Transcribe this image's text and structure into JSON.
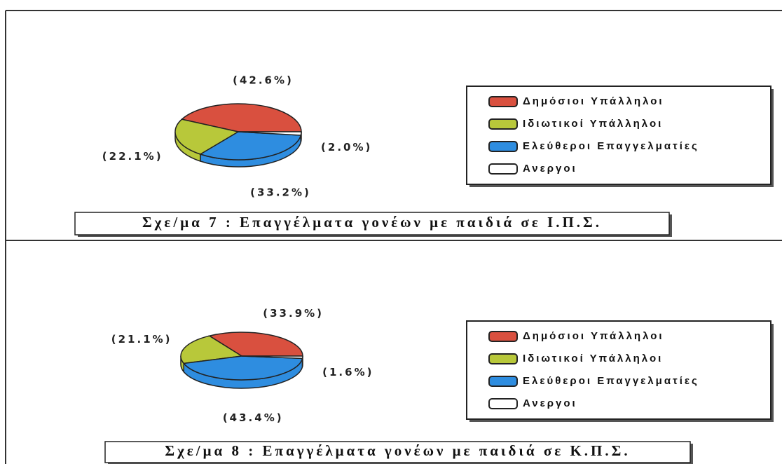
{
  "chart_data": [
    {
      "type": "pie",
      "title": "Σχε/μα 7 : Επαγγέλματα γονέων με παιδιά σε Ι.Π.Σ.",
      "categories": [
        "Δημόσιοι Υπάλληλοι",
        "Ιδιωτικοί Υπάλληλοι",
        "Ελεύθεροι Επαγγελματίες",
        "Ανεργοι"
      ],
      "values": [
        42.6,
        22.1,
        33.2,
        2.0
      ],
      "value_labels": [
        "(42.6%)",
        "(22.1%)",
        "(33.2%)",
        "(2.0%)"
      ],
      "colors": [
        "#d9503f",
        "#b8c83a",
        "#2e8de0",
        "#ffffff"
      ]
    },
    {
      "type": "pie",
      "title": "Σχε/μα 8 : Επαγγέλματα γονέων με παιδιά σε Κ.Π.Σ.",
      "categories": [
        "Δημόσιοι Υπάλληλοι",
        "Ιδιωτικοί Υπάλληλοι",
        "Ελεύθεροι Επαγγελματίες",
        "Ανεργοι"
      ],
      "values": [
        33.9,
        21.1,
        43.4,
        1.6
      ],
      "value_labels": [
        "(33.9%)",
        "(21.1%)",
        "(43.4%)",
        "(1.6%)"
      ],
      "colors": [
        "#d9503f",
        "#b8c83a",
        "#2e8de0",
        "#ffffff"
      ]
    }
  ]
}
